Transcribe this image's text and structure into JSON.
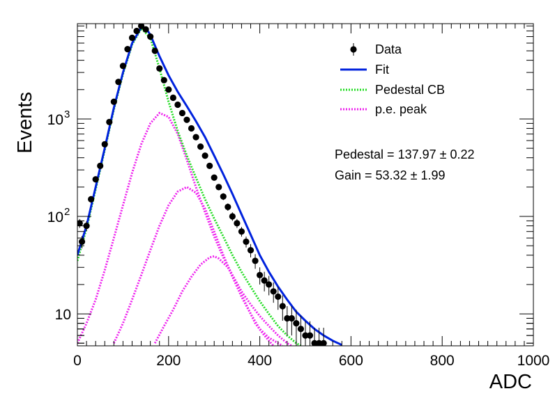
{
  "chart_data": {
    "type": "scatter",
    "xlabel": "ADC",
    "ylabel": "Events",
    "xlim": [
      0,
      1000
    ],
    "ylim": [
      4.7,
      9500
    ],
    "y_scale": "log",
    "grid": false,
    "legend_placement": "top-right",
    "x_ticks": [
      0,
      200,
      400,
      600,
      800,
      1000
    ],
    "x_tick_labels": [
      "0",
      "200",
      "400",
      "600",
      "800",
      "1000"
    ],
    "y_ticks": [
      10,
      100,
      1000
    ],
    "y_tick_labels": [
      {
        "base": "10",
        "exp": ""
      },
      {
        "base": "10",
        "exp": "2"
      },
      {
        "base": "10",
        "exp": "3"
      }
    ],
    "legend": [
      {
        "label": "Data",
        "kind": "marker",
        "color": "#000000"
      },
      {
        "label": "Fit",
        "kind": "solid",
        "color": "#0022dd"
      },
      {
        "label": "Pedestal CB",
        "kind": "dotted",
        "color": "#22dd22"
      },
      {
        "label": "p.e. peak",
        "kind": "dotted",
        "color": "#ee22ee"
      }
    ],
    "annotations": [
      {
        "text": "Pedestal = 137.97 ± 0.22"
      },
      {
        "text": "Gain = 53.32 ± 1.99"
      }
    ],
    "series": [
      {
        "name": "Data",
        "kind": "errorbar_points",
        "color": "#000000",
        "x": [
          5,
          10,
          20,
          30,
          40,
          50,
          60,
          70,
          80,
          90,
          100,
          110,
          120,
          130,
          140,
          150,
          160,
          170,
          180,
          190,
          200,
          210,
          220,
          230,
          240,
          250,
          260,
          270,
          280,
          290,
          300,
          310,
          320,
          330,
          340,
          350,
          360,
          370,
          380,
          390,
          400,
          410,
          420,
          430,
          440,
          450,
          460,
          470,
          480,
          490,
          500,
          510,
          520,
          530,
          540
        ],
        "y": [
          85,
          55,
          80,
          150,
          240,
          330,
          550,
          930,
          1500,
          2400,
          3500,
          5200,
          6800,
          8000,
          9000,
          8300,
          7000,
          5000,
          3300,
          2500,
          2000,
          1650,
          1400,
          1150,
          980,
          800,
          650,
          520,
          420,
          330,
          250,
          200,
          160,
          125,
          100,
          85,
          70,
          55,
          45,
          35,
          25,
          22,
          20,
          17,
          15,
          12,
          9,
          9,
          8,
          7,
          6,
          6,
          5,
          5,
          5
        ],
        "err": [
          9,
          8,
          9,
          12,
          15,
          18,
          23,
          30,
          39,
          49,
          59,
          72,
          82,
          89,
          95,
          91,
          84,
          71,
          57,
          50,
          45,
          41,
          37,
          34,
          31,
          28,
          25,
          23,
          20,
          18,
          16,
          14,
          13,
          11,
          10,
          9,
          8,
          7,
          7,
          6,
          5,
          5,
          4.5,
          4,
          4,
          3.5,
          3,
          3,
          3,
          2.6,
          2.4,
          2.4,
          2.2,
          2.2,
          2.2
        ]
      },
      {
        "name": "Fit",
        "kind": "line",
        "color": "#0022dd",
        "x": [
          0,
          20,
          40,
          60,
          80,
          100,
          120,
          140,
          150,
          160,
          180,
          200,
          220,
          240,
          260,
          280,
          300,
          320,
          340,
          360,
          380,
          400,
          420,
          440,
          460,
          480,
          500,
          520,
          540,
          560,
          580
        ],
        "y": [
          40,
          80,
          200,
          500,
          1300,
          3000,
          6000,
          8700,
          8600,
          7300,
          4400,
          2800,
          1900,
          1350,
          950,
          650,
          420,
          270,
          170,
          105,
          65,
          40,
          27,
          19,
          14,
          10.5,
          8.5,
          7,
          6,
          5.3,
          4.8
        ]
      },
      {
        "name": "Pedestal CB",
        "kind": "dotted",
        "color": "#22dd22",
        "x": [
          0,
          20,
          40,
          60,
          80,
          100,
          120,
          140,
          160,
          180,
          200,
          220,
          240,
          260,
          280,
          300,
          320,
          340,
          360,
          380,
          400,
          420,
          440,
          460,
          480,
          490
        ],
        "y": [
          35,
          75,
          190,
          480,
          1250,
          2900,
          5800,
          8500,
          6800,
          3300,
          1500,
          750,
          420,
          250,
          150,
          95,
          62,
          40,
          27,
          19,
          13.5,
          10,
          7.5,
          6,
          5,
          4.7
        ]
      },
      {
        "name": "p.e. peak 1",
        "kind": "dotted",
        "color": "#ee22ee",
        "x": [
          0,
          20,
          40,
          60,
          80,
          100,
          120,
          140,
          160,
          180,
          200,
          220,
          240,
          260,
          280,
          300,
          320,
          340,
          360,
          380,
          400,
          420,
          440,
          460,
          470
        ],
        "y": [
          5,
          8,
          14,
          28,
          60,
          130,
          280,
          550,
          900,
          1150,
          1050,
          700,
          380,
          200,
          110,
          62,
          38,
          25,
          17,
          12.5,
          9.5,
          7.5,
          6,
          5,
          4.7
        ]
      },
      {
        "name": "p.e. peak 2",
        "kind": "dotted",
        "color": "#ee22ee",
        "x": [
          80,
          100,
          120,
          140,
          160,
          180,
          200,
          220,
          240,
          260,
          280,
          300,
          320,
          340,
          360,
          380,
          400,
          420,
          440,
          450
        ],
        "y": [
          5,
          8,
          14,
          25,
          45,
          80,
          130,
          180,
          200,
          175,
          120,
          70,
          40,
          24,
          15,
          10,
          7,
          5.7,
          5,
          4.7
        ]
      },
      {
        "name": "p.e. peak 3",
        "kind": "dotted",
        "color": "#ee22ee",
        "x": [
          170,
          190,
          210,
          230,
          250,
          270,
          290,
          300,
          310,
          330,
          350,
          370,
          390,
          410,
          430
        ],
        "y": [
          5,
          7.5,
          11,
          17,
          24,
          32,
          38,
          39,
          37,
          30,
          20,
          12.5,
          8,
          6,
          4.7
        ]
      }
    ]
  }
}
